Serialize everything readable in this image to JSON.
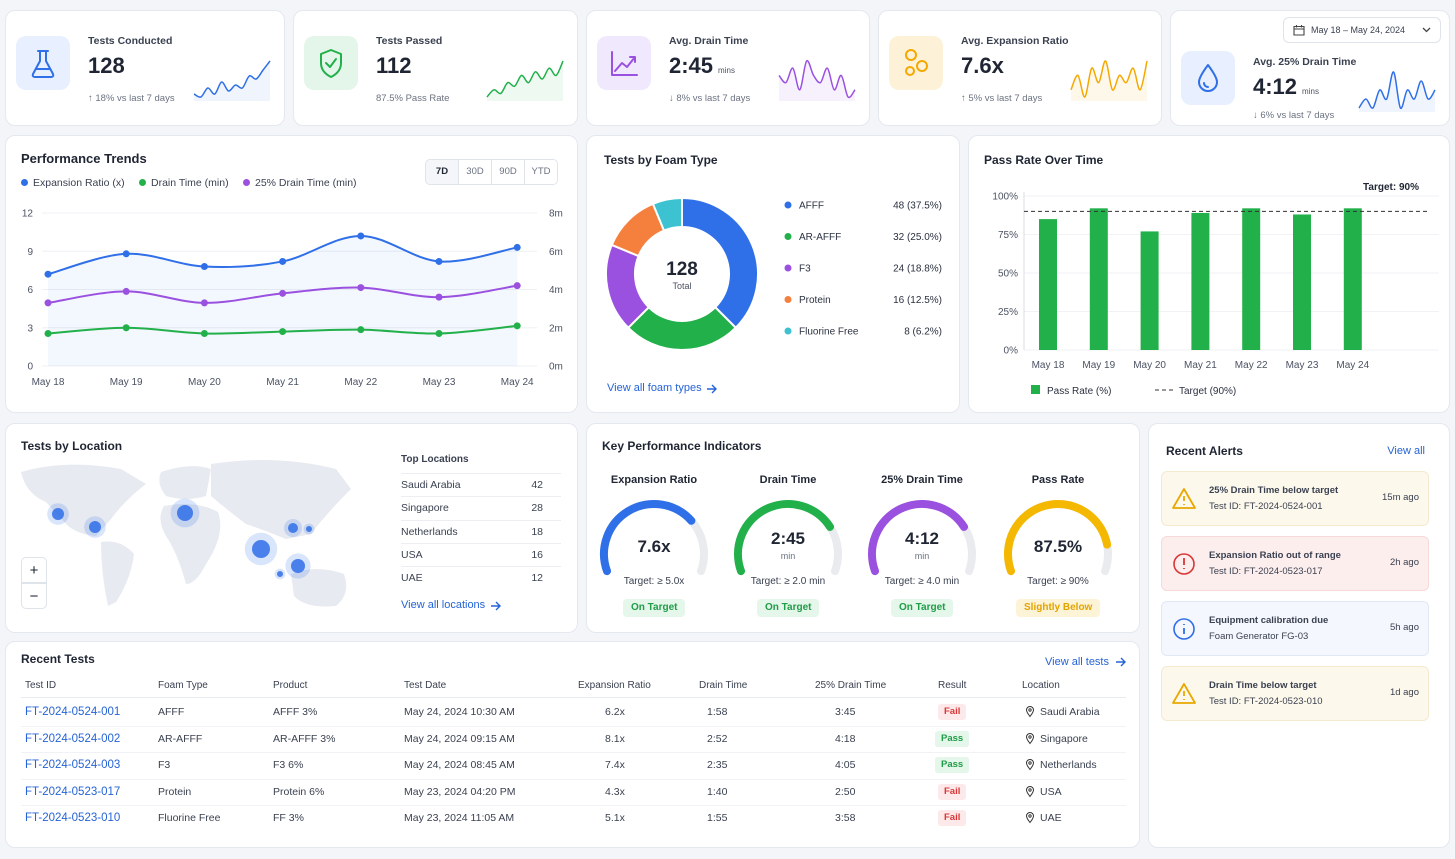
{
  "date_range": "May 18 – May 24, 2024",
  "kpis": [
    {
      "title": "Tests Conducted",
      "value": "128",
      "note": "↑ 18% vs last 7 days",
      "color": "#2f6fe8",
      "bg": "#e8efff",
      "spark": [
        3,
        2.5,
        4,
        3,
        5,
        3.5,
        4.5,
        4,
        6,
        5.5,
        7,
        8.5
      ]
    },
    {
      "title": "Tests Passed",
      "value": "112",
      "note": "87.5% Pass Rate",
      "color": "#22b04b",
      "bg": "#e4f6e9",
      "spark": [
        2,
        3,
        2.5,
        4,
        3.5,
        5,
        4,
        5.5,
        4.5,
        6,
        5,
        7
      ]
    },
    {
      "title": "Avg. Drain Time",
      "value": "2:45",
      "unit": "mins",
      "note": "↓ 8% vs last 7 days",
      "color": "#9b51e0",
      "bg": "#f0e8fc",
      "spark": [
        5,
        4,
        6,
        3,
        7,
        5,
        4,
        6,
        3,
        5,
        2,
        3
      ]
    },
    {
      "title": "Avg. Expansion Ratio",
      "value": "7.6x",
      "note": "↑ 5% vs last 7 days",
      "color": "#f5a800",
      "bg": "#fdf2d8",
      "spark": [
        4,
        6,
        3,
        7,
        5,
        8,
        4,
        6,
        5,
        7,
        4,
        8
      ]
    },
    {
      "title": "Avg. 25% Drain Time",
      "value": "4:12",
      "unit": "mins",
      "note": "↓ 6% vs last 7 days",
      "color": "#2f6fe8",
      "bg": "#e8efff",
      "spark": [
        3,
        4,
        3,
        5,
        4,
        7,
        3,
        5,
        4,
        6,
        4,
        5
      ]
    }
  ],
  "chart_data": [
    {
      "type": "line",
      "title": "Performance Trends",
      "ranges": [
        "7D",
        "30D",
        "90D",
        "YTD"
      ],
      "active_range": 0,
      "categories": [
        "May 18",
        "May 19",
        "May 20",
        "May 21",
        "May 22",
        "May 23",
        "May 24"
      ],
      "series": [
        {
          "name": "Expansion Ratio (x)",
          "color": "#2f6fe8",
          "values": [
            7.2,
            8.8,
            7.8,
            8.2,
            10.2,
            8.2,
            9.3
          ]
        },
        {
          "name": "Drain Time (min)",
          "color": "#22b04b",
          "axis": "y2",
          "values": [
            1.7,
            2.0,
            1.7,
            1.8,
            1.9,
            1.7,
            2.1
          ]
        },
        {
          "name": "25% Drain Time (min)",
          "color": "#9b51e0",
          "axis": "y2",
          "values": [
            3.3,
            3.9,
            3.3,
            3.8,
            4.1,
            3.6,
            4.2
          ]
        }
      ],
      "ylim": [
        0,
        12
      ],
      "yticks": [
        0,
        3,
        6,
        9,
        12
      ],
      "y2lim": [
        0,
        8
      ],
      "y2ticks": [
        {
          "value": 0,
          "label": "0m"
        },
        {
          "value": 2,
          "label": "2m"
        },
        {
          "value": 4,
          "label": "4m"
        },
        {
          "value": 6,
          "label": "6m"
        },
        {
          "value": 8,
          "label": "8m"
        }
      ],
      "grid": true
    },
    {
      "type": "donut",
      "title": "Tests by Foam Type",
      "center_value": "128",
      "center_label": "Total",
      "categories": [
        "AFFF",
        "AR-AFFF",
        "F3",
        "Protein",
        "Fluorine Free"
      ],
      "values": [
        48,
        32,
        24,
        16,
        8
      ],
      "value_labels": [
        "48 (37.5%)",
        "32 (25.0%)",
        "24 (18.8%)",
        "16 (12.5%)",
        "8 (6.2%)"
      ],
      "colors": [
        "#2f6fe8",
        "#22b04b",
        "#9b51e0",
        "#f5803e",
        "#3cc2d0"
      ],
      "link": "View all foam types"
    },
    {
      "type": "bar",
      "title": "Pass Rate Over Time",
      "categories": [
        "May 18",
        "May 19",
        "May 20",
        "May 21",
        "May 22",
        "May 23",
        "May 24"
      ],
      "series": [
        {
          "name": "Pass Rate (%)",
          "color": "#22b04b",
          "values": [
            85,
            92,
            77,
            89,
            92,
            88,
            92
          ]
        }
      ],
      "target": {
        "value": 90,
        "label": "Target: 90%",
        "name": "Target (90%)"
      },
      "ylim": [
        0,
        100
      ],
      "yticks": [
        {
          "value": 0,
          "label": "0%"
        },
        {
          "value": 25,
          "label": "25%"
        },
        {
          "value": 50,
          "label": "50%"
        },
        {
          "value": 75,
          "label": "75%"
        },
        {
          "value": 100,
          "label": "100%"
        }
      ]
    }
  ],
  "location": {
    "title": "Tests by Location",
    "list_title": "Top Locations",
    "rows": [
      [
        "Saudi Arabia",
        "42"
      ],
      [
        "Singapore",
        "28"
      ],
      [
        "Netherlands",
        "18"
      ],
      [
        "USA",
        "16"
      ],
      [
        "UAE",
        "12"
      ]
    ],
    "link": "View all locations",
    "zoom": [
      "+",
      "−"
    ]
  },
  "gauges": {
    "title": "Key Performance Indicators",
    "items": [
      {
        "name": "Expansion Ratio",
        "value": "7.6x",
        "target": "Target: ≥ 5.0x",
        "status": "On Target",
        "ok": true,
        "fill": 0.72,
        "color": "#2f6fe8"
      },
      {
        "name": "Drain Time",
        "value": "2:45",
        "unit": "min",
        "target": "Target: ≥ 2.0 min",
        "status": "On Target",
        "ok": true,
        "fill": 0.76,
        "color": "#22b04b"
      },
      {
        "name": "25% Drain Time",
        "value": "4:12",
        "unit": "min",
        "target": "Target: ≥ 4.0 min",
        "status": "On Target",
        "ok": true,
        "fill": 0.76,
        "color": "#9b51e0"
      },
      {
        "name": "Pass Rate",
        "value": "87.5%",
        "target": "Target: ≥ 90%",
        "status": "Slightly Below",
        "ok": false,
        "fill": 0.86,
        "color": "#f5b800"
      }
    ]
  },
  "alerts": {
    "title": "Recent Alerts",
    "link": "View all",
    "items": [
      {
        "level": "warning",
        "title": "25% Drain Time below target",
        "detail": "Test ID: FT-2024-0524-001",
        "time": "15m ago"
      },
      {
        "level": "error",
        "title": "Expansion Ratio out of range",
        "detail": "Test ID: FT-2024-0523-017",
        "time": "2h ago"
      },
      {
        "level": "info",
        "title": "Equipment calibration due",
        "detail": "Foam Generator FG-03",
        "time": "5h ago"
      },
      {
        "level": "warning",
        "title": "Drain Time below target",
        "detail": "Test ID: FT-2024-0523-010",
        "time": "1d ago"
      }
    ]
  },
  "recent_tests": {
    "title": "Recent Tests",
    "link": "View all tests",
    "columns": [
      "Test ID",
      "Foam Type",
      "Product",
      "Test Date",
      "Expansion Ratio",
      "Drain Time",
      "25% Drain Time",
      "Result",
      "Location"
    ],
    "rows": [
      [
        "FT-2024-0524-001",
        "AFFF",
        "AFFF 3%",
        "May 24, 2024 10:30 AM",
        "6.2x",
        "1:58",
        "3:45",
        "Fail",
        "Saudi Arabia"
      ],
      [
        "FT-2024-0524-002",
        "AR-AFFF",
        "AR-AFFF 3%",
        "May 24, 2024 09:15 AM",
        "8.1x",
        "2:52",
        "4:18",
        "Pass",
        "Singapore"
      ],
      [
        "FT-2024-0524-003",
        "F3",
        "F3 6%",
        "May 24, 2024 08:45 AM",
        "7.4x",
        "2:35",
        "4:05",
        "Pass",
        "Netherlands"
      ],
      [
        "FT-2024-0523-017",
        "Protein",
        "Protein 6%",
        "May 23, 2024 04:20 PM",
        "4.3x",
        "1:40",
        "2:50",
        "Fail",
        "USA"
      ],
      [
        "FT-2024-0523-010",
        "Fluorine Free",
        "FF 3%",
        "May 23, 2024 11:05 AM",
        "5.1x",
        "1:55",
        "3:58",
        "Fail",
        "UAE"
      ]
    ],
    "passed": [
      false,
      true,
      true,
      false,
      false
    ]
  }
}
